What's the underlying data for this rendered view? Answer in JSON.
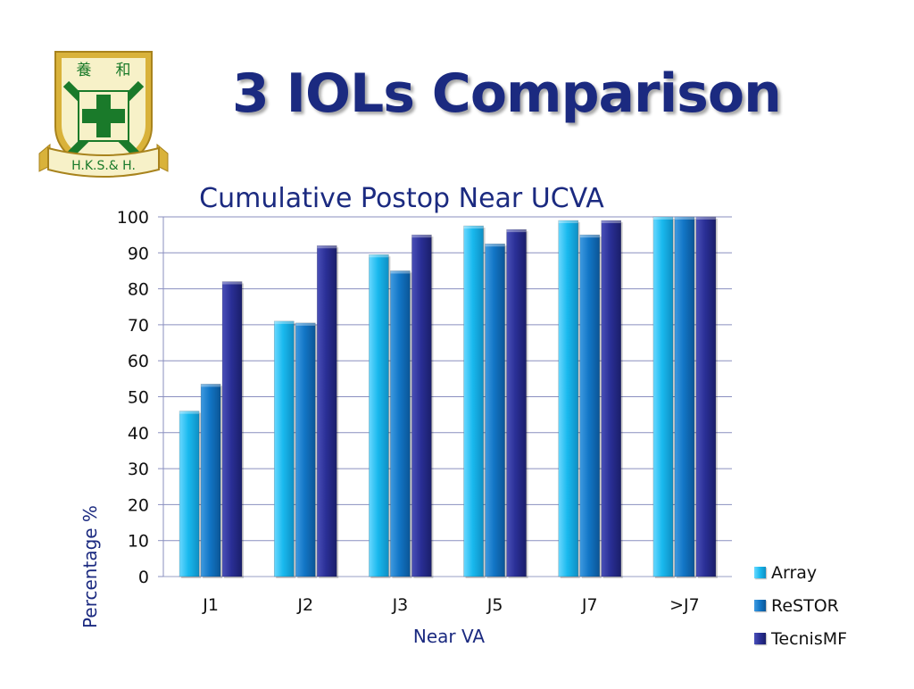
{
  "slide": {
    "title": "3 IOLs Comparison",
    "logo": {
      "text_top_left": "養",
      "text_top_right": "和",
      "banner_text": "H.K.S.& H.",
      "colors": {
        "gold": "#d9b23a",
        "green": "#1a7a2a",
        "cream": "#f7f1c8"
      }
    }
  },
  "chart_data": {
    "type": "bar",
    "title": "Cumulative Postop Near UCVA",
    "xlabel": "Near VA",
    "ylabel": "Percentage %",
    "ylim": [
      0,
      100
    ],
    "yticks": [
      0,
      10,
      20,
      30,
      40,
      50,
      60,
      70,
      80,
      90,
      100
    ],
    "categories": [
      "J1",
      "J2",
      "J3",
      "J5",
      "J7",
      ">J7"
    ],
    "series": [
      {
        "name": "Array",
        "color": "#19b9ee",
        "values": [
          46,
          71,
          89.5,
          97.5,
          99,
          100
        ]
      },
      {
        "name": "ReSTOR",
        "color": "#1276c6",
        "values": [
          53.5,
          70.5,
          85,
          92.5,
          95,
          100
        ]
      },
      {
        "name": "TecnisMF",
        "color": "#2a2f96",
        "values": [
          82,
          92,
          95,
          96.5,
          99,
          100
        ]
      }
    ],
    "grid": true,
    "legend_position": "right"
  }
}
